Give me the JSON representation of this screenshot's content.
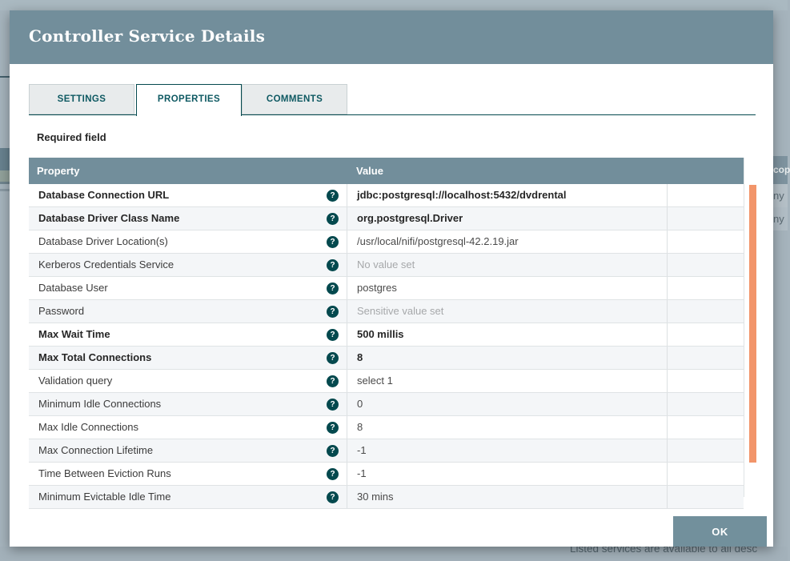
{
  "dialog": {
    "title": "Controller Service Details",
    "tabs": [
      {
        "label": "SETTINGS",
        "active": false
      },
      {
        "label": "PROPERTIES",
        "active": true
      },
      {
        "label": "COMMENTS",
        "active": false
      }
    ],
    "required_note": "Required field",
    "ok_label": "OK",
    "table": {
      "columns": {
        "property": "Property",
        "value": "Value"
      },
      "help_glyph": "?",
      "rows": [
        {
          "property": "Database Connection URL",
          "value": "jdbc:postgresql://localhost:5432/dvdrental",
          "required": true,
          "muted": false
        },
        {
          "property": "Database Driver Class Name",
          "value": "org.postgresql.Driver",
          "required": true,
          "muted": false
        },
        {
          "property": "Database Driver Location(s)",
          "value": "/usr/local/nifi/postgresql-42.2.19.jar",
          "required": false,
          "muted": false
        },
        {
          "property": "Kerberos Credentials Service",
          "value": "No value set",
          "required": false,
          "muted": true
        },
        {
          "property": "Database User",
          "value": "postgres",
          "required": false,
          "muted": false
        },
        {
          "property": "Password",
          "value": "Sensitive value set",
          "required": false,
          "muted": true
        },
        {
          "property": "Max Wait Time",
          "value": "500 millis",
          "required": true,
          "muted": false
        },
        {
          "property": "Max Total Connections",
          "value": "8",
          "required": true,
          "muted": false
        },
        {
          "property": "Validation query",
          "value": "select 1",
          "required": false,
          "muted": false
        },
        {
          "property": "Minimum Idle Connections",
          "value": "0",
          "required": false,
          "muted": false
        },
        {
          "property": "Max Idle Connections",
          "value": "8",
          "required": false,
          "muted": false
        },
        {
          "property": "Max Connection Lifetime",
          "value": "-1",
          "required": false,
          "muted": false
        },
        {
          "property": "Time Between Eviction Runs",
          "value": "-1",
          "required": false,
          "muted": false
        },
        {
          "property": "Minimum Evictable Idle Time",
          "value": "30 mins",
          "required": false,
          "muted": false
        }
      ]
    }
  },
  "background": {
    "header_fragment": "cop",
    "row_fragment_1": "ny",
    "row_fragment_2": "ny",
    "footer_text": "Listed services are available to all desc"
  },
  "colors": {
    "accent_slate": "#728E9B",
    "accent_teal": "#04494E",
    "scrollbar_orange": "#F2956A",
    "muted_value": "#A6A8AA"
  }
}
